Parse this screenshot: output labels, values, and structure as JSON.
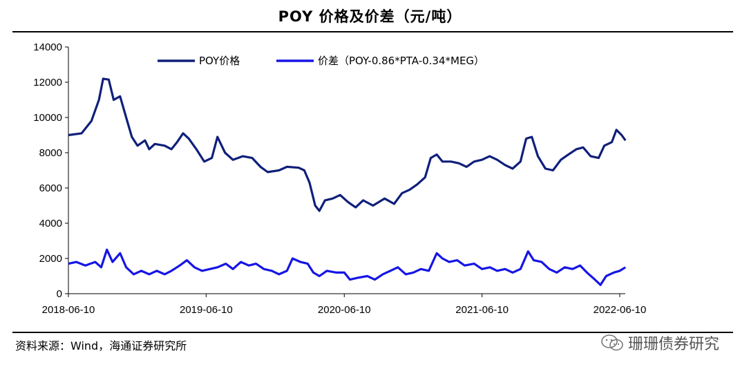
{
  "title": "POY 价格及价差（元/吨）",
  "source": "资料来源：Wind，海通证券研究所",
  "watermark": "珊珊债券研究",
  "colors": {
    "poy": "#0f1f7a",
    "spread": "#1515e6"
  },
  "chart_data": {
    "type": "line",
    "x_ticks": [
      "2018-06-10",
      "2019-06-10",
      "2020-06-10",
      "2021-06-10",
      "2022-06-10"
    ],
    "x_range": [
      "2018-06-10",
      "2022-06-10"
    ],
    "y_ticks": [
      0,
      2000,
      4000,
      6000,
      8000,
      10000,
      12000,
      14000
    ],
    "ylim": [
      0,
      14000
    ],
    "legend_position": "top-center",
    "series": [
      {
        "name": "POY价格",
        "color": "#0f1f7a",
        "points": [
          [
            "2018-06-10",
            9000
          ],
          [
            "2018-07-15",
            9100
          ],
          [
            "2018-08-10",
            9800
          ],
          [
            "2018-08-30",
            11000
          ],
          [
            "2018-09-10",
            12200
          ],
          [
            "2018-09-25",
            12150
          ],
          [
            "2018-10-08",
            11000
          ],
          [
            "2018-10-25",
            11200
          ],
          [
            "2018-11-10",
            10000
          ],
          [
            "2018-11-25",
            8900
          ],
          [
            "2018-12-10",
            8400
          ],
          [
            "2018-12-30",
            8700
          ],
          [
            "2019-01-10",
            8200
          ],
          [
            "2019-01-25",
            8500
          ],
          [
            "2019-02-20",
            8400
          ],
          [
            "2019-03-10",
            8200
          ],
          [
            "2019-03-25",
            8600
          ],
          [
            "2019-04-10",
            9100
          ],
          [
            "2019-04-25",
            8800
          ],
          [
            "2019-05-15",
            8200
          ],
          [
            "2019-06-05",
            7500
          ],
          [
            "2019-06-25",
            7700
          ],
          [
            "2019-07-10",
            8900
          ],
          [
            "2019-07-30",
            8000
          ],
          [
            "2019-08-20",
            7600
          ],
          [
            "2019-09-15",
            7800
          ],
          [
            "2019-10-10",
            7700
          ],
          [
            "2019-11-01",
            7200
          ],
          [
            "2019-11-20",
            6900
          ],
          [
            "2019-12-20",
            7000
          ],
          [
            "2020-01-10",
            7200
          ],
          [
            "2020-02-10",
            7150
          ],
          [
            "2020-02-25",
            7000
          ],
          [
            "2020-03-10",
            6300
          ],
          [
            "2020-03-25",
            5000
          ],
          [
            "2020-04-05",
            4700
          ],
          [
            "2020-04-20",
            5300
          ],
          [
            "2020-05-10",
            5400
          ],
          [
            "2020-05-30",
            5600
          ],
          [
            "2020-06-20",
            5200
          ],
          [
            "2020-07-10",
            4900
          ],
          [
            "2020-07-30",
            5300
          ],
          [
            "2020-08-25",
            5000
          ],
          [
            "2020-09-25",
            5400
          ],
          [
            "2020-10-20",
            5100
          ],
          [
            "2020-11-10",
            5700
          ],
          [
            "2020-11-30",
            5900
          ],
          [
            "2020-12-20",
            6200
          ],
          [
            "2021-01-10",
            6600
          ],
          [
            "2021-01-25",
            7700
          ],
          [
            "2021-02-10",
            7900
          ],
          [
            "2021-02-25",
            7500
          ],
          [
            "2021-03-20",
            7500
          ],
          [
            "2021-04-10",
            7400
          ],
          [
            "2021-04-30",
            7200
          ],
          [
            "2021-05-20",
            7500
          ],
          [
            "2021-06-10",
            7600
          ],
          [
            "2021-06-30",
            7800
          ],
          [
            "2021-07-20",
            7600
          ],
          [
            "2021-08-10",
            7300
          ],
          [
            "2021-08-30",
            7100
          ],
          [
            "2021-09-20",
            7500
          ],
          [
            "2021-10-05",
            8800
          ],
          [
            "2021-10-20",
            8900
          ],
          [
            "2021-11-05",
            7800
          ],
          [
            "2021-11-25",
            7100
          ],
          [
            "2021-12-15",
            7000
          ],
          [
            "2022-01-05",
            7600
          ],
          [
            "2022-01-25",
            7900
          ],
          [
            "2022-02-15",
            8200
          ],
          [
            "2022-03-05",
            8300
          ],
          [
            "2022-03-25",
            7800
          ],
          [
            "2022-04-15",
            7700
          ],
          [
            "2022-04-30",
            8400
          ],
          [
            "2022-05-20",
            8600
          ],
          [
            "2022-06-01",
            9300
          ],
          [
            "2022-06-15",
            9000
          ],
          [
            "2022-06-25",
            8700
          ]
        ]
      },
      {
        "name": "价差（POY-0.86*PTA-0.34*MEG）",
        "color": "#1515e6",
        "points": [
          [
            "2018-06-10",
            1700
          ],
          [
            "2018-07-01",
            1800
          ],
          [
            "2018-07-25",
            1600
          ],
          [
            "2018-08-20",
            1800
          ],
          [
            "2018-09-05",
            1500
          ],
          [
            "2018-09-20",
            2500
          ],
          [
            "2018-10-05",
            1800
          ],
          [
            "2018-10-25",
            2300
          ],
          [
            "2018-11-10",
            1500
          ],
          [
            "2018-11-30",
            1100
          ],
          [
            "2018-12-20",
            1300
          ],
          [
            "2019-01-10",
            1100
          ],
          [
            "2019-01-30",
            1300
          ],
          [
            "2019-02-20",
            1100
          ],
          [
            "2019-03-10",
            1300
          ],
          [
            "2019-04-01",
            1600
          ],
          [
            "2019-04-20",
            1900
          ],
          [
            "2019-05-10",
            1500
          ],
          [
            "2019-05-30",
            1300
          ],
          [
            "2019-06-20",
            1400
          ],
          [
            "2019-07-10",
            1500
          ],
          [
            "2019-08-01",
            1700
          ],
          [
            "2019-08-20",
            1400
          ],
          [
            "2019-09-10",
            1800
          ],
          [
            "2019-10-01",
            1600
          ],
          [
            "2019-10-20",
            1700
          ],
          [
            "2019-11-10",
            1400
          ],
          [
            "2019-12-01",
            1300
          ],
          [
            "2019-12-20",
            1100
          ],
          [
            "2020-01-10",
            1300
          ],
          [
            "2020-01-25",
            2000
          ],
          [
            "2020-02-15",
            1800
          ],
          [
            "2020-03-05",
            1700
          ],
          [
            "2020-03-20",
            1200
          ],
          [
            "2020-04-05",
            1000
          ],
          [
            "2020-04-25",
            1300
          ],
          [
            "2020-05-20",
            1200
          ],
          [
            "2020-06-10",
            1200
          ],
          [
            "2020-06-25",
            800
          ],
          [
            "2020-07-15",
            900
          ],
          [
            "2020-08-10",
            1000
          ],
          [
            "2020-08-30",
            800
          ],
          [
            "2020-09-20",
            1100
          ],
          [
            "2020-10-10",
            1300
          ],
          [
            "2020-10-30",
            1500
          ],
          [
            "2020-11-20",
            1100
          ],
          [
            "2020-12-10",
            1200
          ],
          [
            "2020-12-30",
            1400
          ],
          [
            "2021-01-20",
            1300
          ],
          [
            "2021-02-10",
            2300
          ],
          [
            "2021-02-25",
            2000
          ],
          [
            "2021-03-15",
            1800
          ],
          [
            "2021-04-05",
            1900
          ],
          [
            "2021-04-25",
            1600
          ],
          [
            "2021-05-20",
            1700
          ],
          [
            "2021-06-10",
            1400
          ],
          [
            "2021-07-01",
            1500
          ],
          [
            "2021-07-20",
            1300
          ],
          [
            "2021-08-10",
            1400
          ],
          [
            "2021-08-30",
            1200
          ],
          [
            "2021-09-20",
            1400
          ],
          [
            "2021-10-10",
            2400
          ],
          [
            "2021-10-25",
            1900
          ],
          [
            "2021-11-15",
            1800
          ],
          [
            "2021-12-05",
            1400
          ],
          [
            "2021-12-25",
            1200
          ],
          [
            "2022-01-15",
            1500
          ],
          [
            "2022-02-05",
            1400
          ],
          [
            "2022-02-25",
            1600
          ],
          [
            "2022-03-15",
            1200
          ],
          [
            "2022-04-05",
            800
          ],
          [
            "2022-04-20",
            500
          ],
          [
            "2022-05-05",
            1000
          ],
          [
            "2022-05-25",
            1200
          ],
          [
            "2022-06-10",
            1300
          ],
          [
            "2022-06-25",
            1500
          ]
        ]
      }
    ]
  }
}
